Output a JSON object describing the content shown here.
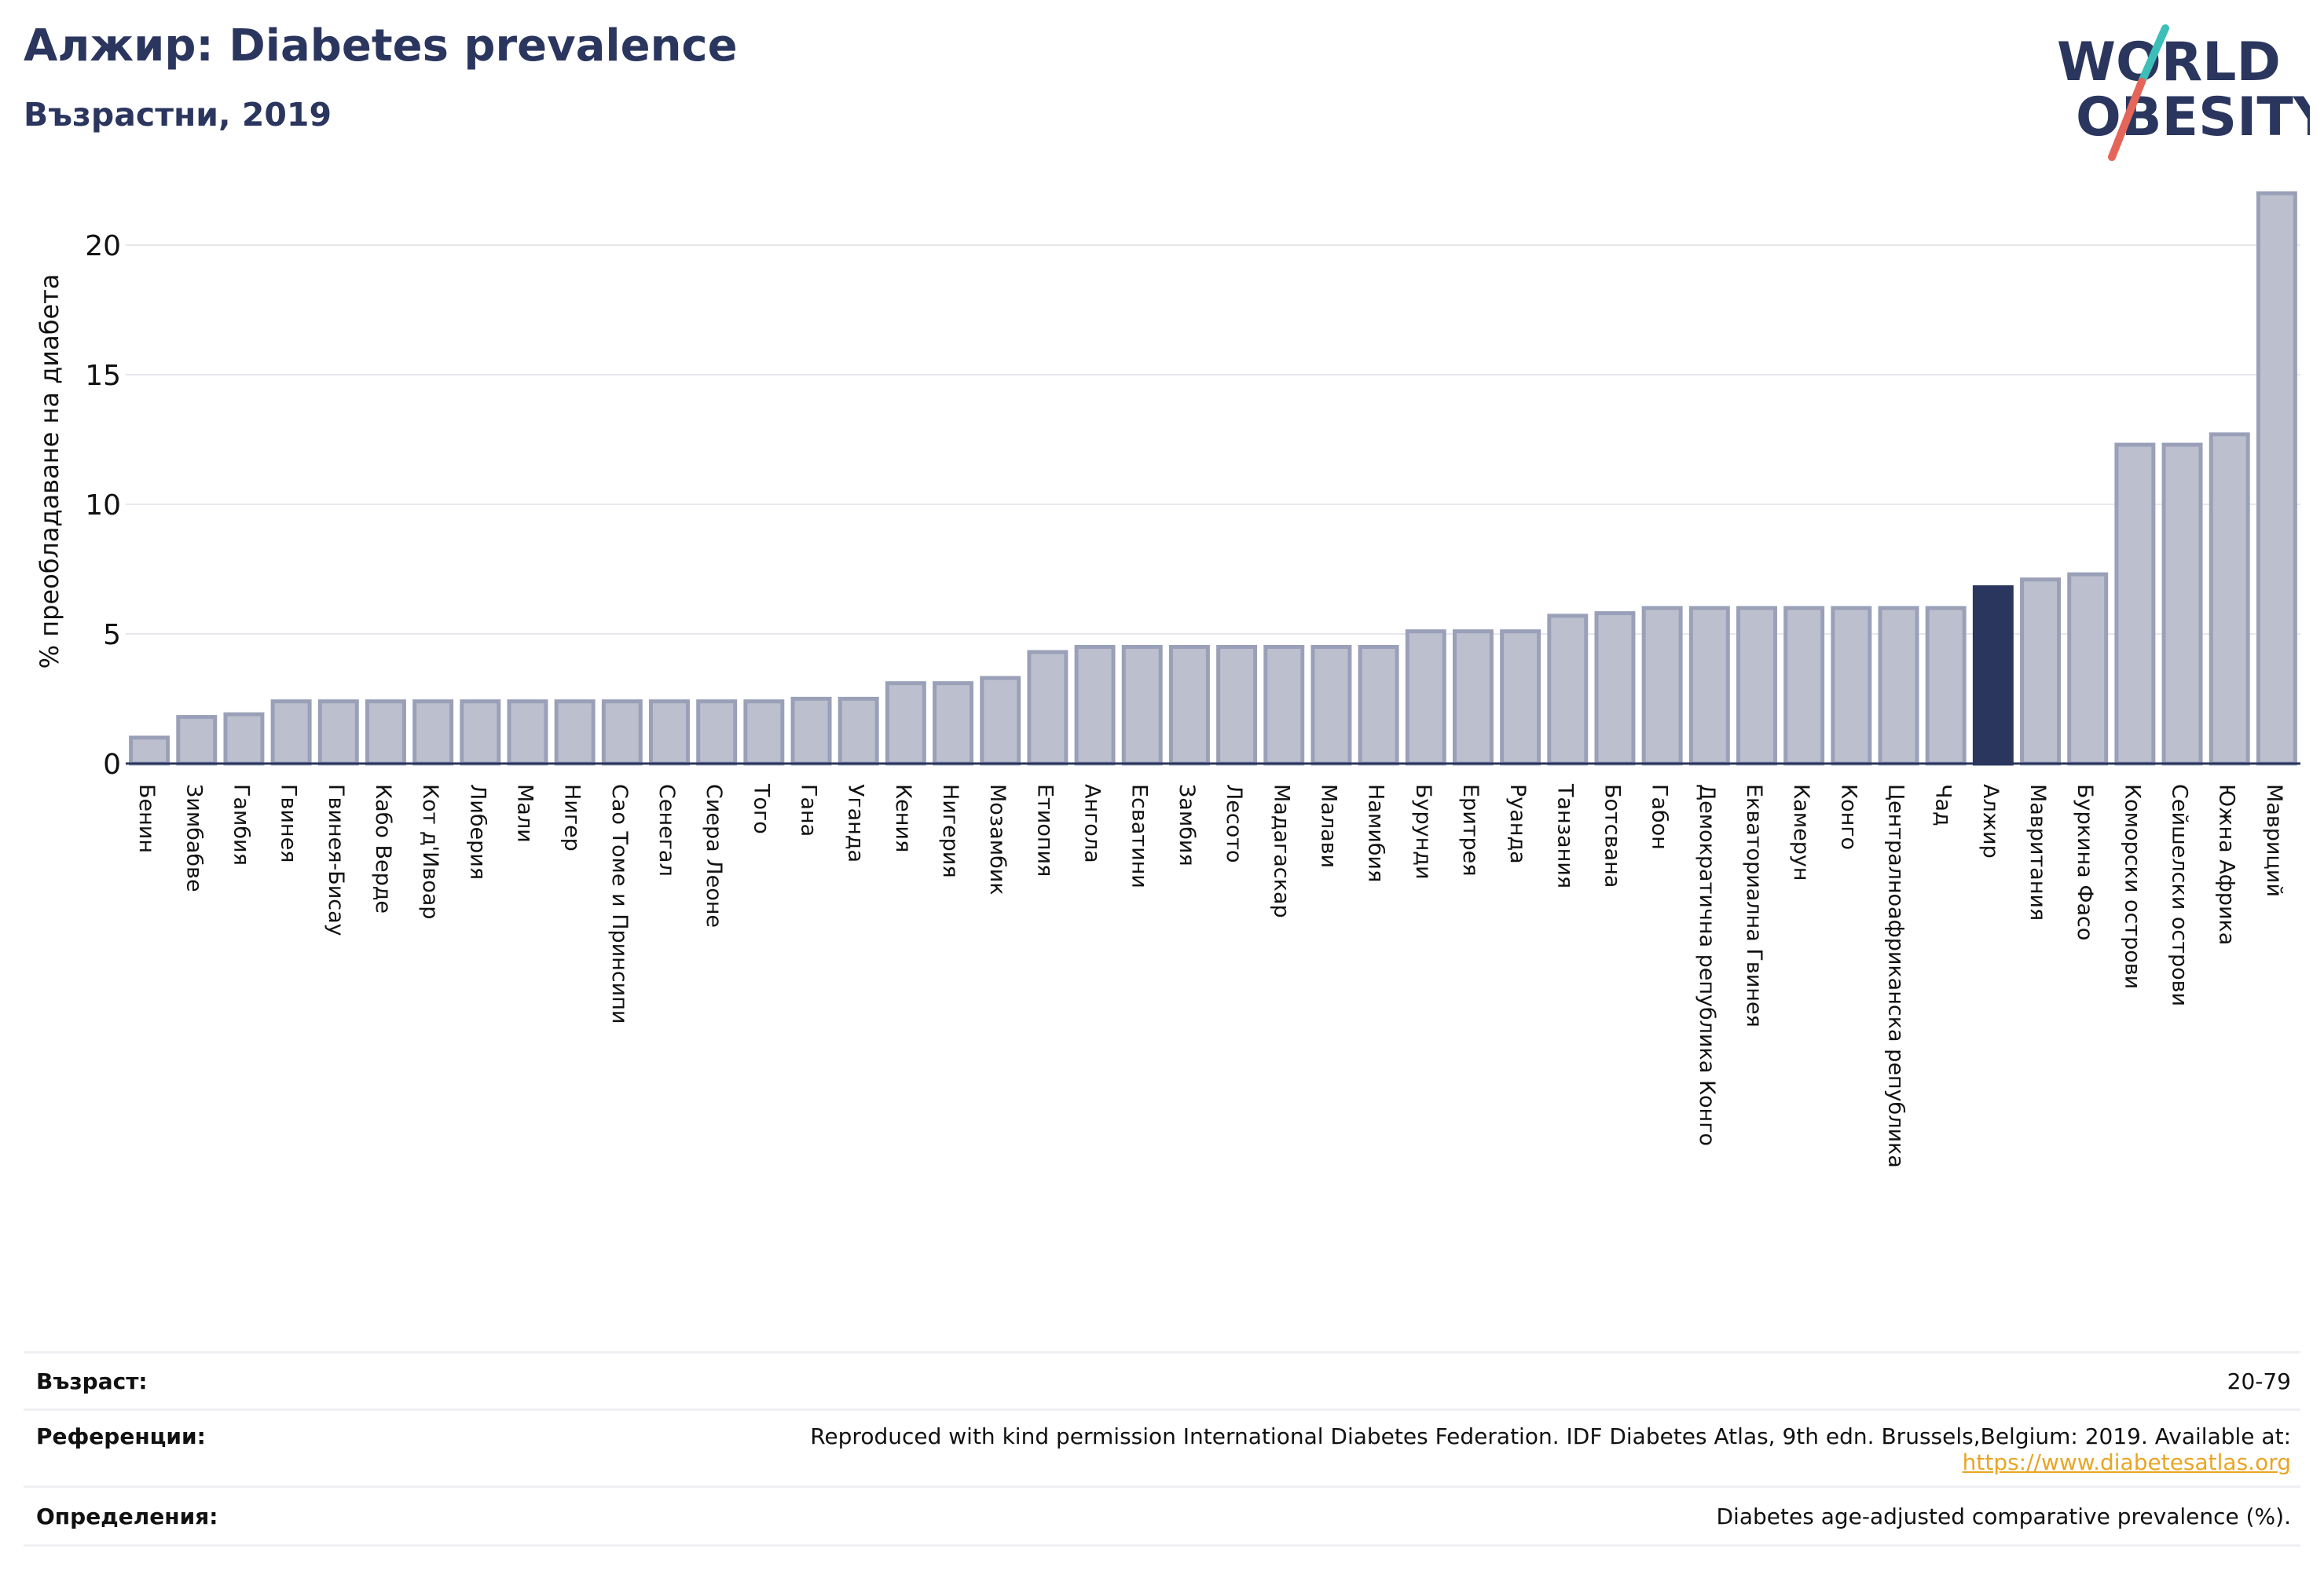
{
  "header": {
    "title": "Алжир: Diabetes prevalence",
    "subtitle": "Възрастни, 2019"
  },
  "logo": {
    "line1": "WORLD",
    "line2": "OBESITY",
    "colors": {
      "text": "#2b365f",
      "slash_top": "#3bbfb8",
      "slash_bottom": "#e4665a"
    }
  },
  "chart_data": {
    "type": "bar",
    "title": "",
    "xlabel": "",
    "ylabel": "% преобладаване на диабета",
    "ylim": [
      0,
      22
    ],
    "yticks": [
      0,
      5,
      10,
      15,
      20
    ],
    "grid": true,
    "highlight": "Алжир",
    "colors": {
      "bar": "#bcc0ce",
      "bar_edge": "#9aa0b8",
      "highlight": "#2b365f",
      "grid": "#e6e8ee",
      "axis": "#2b365f"
    },
    "categories": [
      "Бенин",
      "Зимбабве",
      "Гамбия",
      "Гвинея",
      "Гвинея-Бисау",
      "Кабо Верде",
      "Кот д'Ивоар",
      "Либерия",
      "Мали",
      "Нигер",
      "Сао Томе и Принсипи",
      "Сенегал",
      "Сиера Леоне",
      "Того",
      "Гана",
      "Уганда",
      "Кения",
      "Нигерия",
      "Мозамбик",
      "Етиопия",
      "Ангола",
      "Есватини",
      "Замбия",
      "Лесото",
      "Мадагаскар",
      "Малави",
      "Намибия",
      "Бурунди",
      "Еритрея",
      "Руанда",
      "Танзания",
      "Ботсвана",
      "Габон",
      "Демократична република Конго",
      "Екваториална Гвинея",
      "Камерун",
      "Конго",
      "Централноафриканска република",
      "Чад",
      "Алжир",
      "Мавритания",
      "Буркина Фасо",
      "Коморски острови",
      "Сейшелски острови",
      "Южна Африка",
      "Мавриций"
    ],
    "values": [
      1.0,
      1.8,
      1.9,
      2.4,
      2.4,
      2.4,
      2.4,
      2.4,
      2.4,
      2.4,
      2.4,
      2.4,
      2.4,
      2.4,
      2.5,
      2.5,
      3.1,
      3.1,
      3.3,
      4.3,
      4.5,
      4.5,
      4.5,
      4.5,
      4.5,
      4.5,
      4.5,
      5.1,
      5.1,
      5.1,
      5.7,
      5.8,
      6.0,
      6.0,
      6.0,
      6.0,
      6.0,
      6.0,
      6.0,
      6.8,
      7.1,
      7.3,
      12.3,
      12.3,
      12.7,
      22.0
    ]
  },
  "footer": {
    "rows": [
      {
        "label": "Възраст:",
        "value": "20-79"
      },
      {
        "label": "Референции:",
        "value": "Reproduced with kind permission International Diabetes Federation. IDF Diabetes Atlas, 9th edn. Brussels,Belgium: 2019. Available at:",
        "link": "https://www.diabetesatlas.org"
      },
      {
        "label": "Определения:",
        "value": "Diabetes age-adjusted comparative prevalence (%)."
      }
    ]
  }
}
